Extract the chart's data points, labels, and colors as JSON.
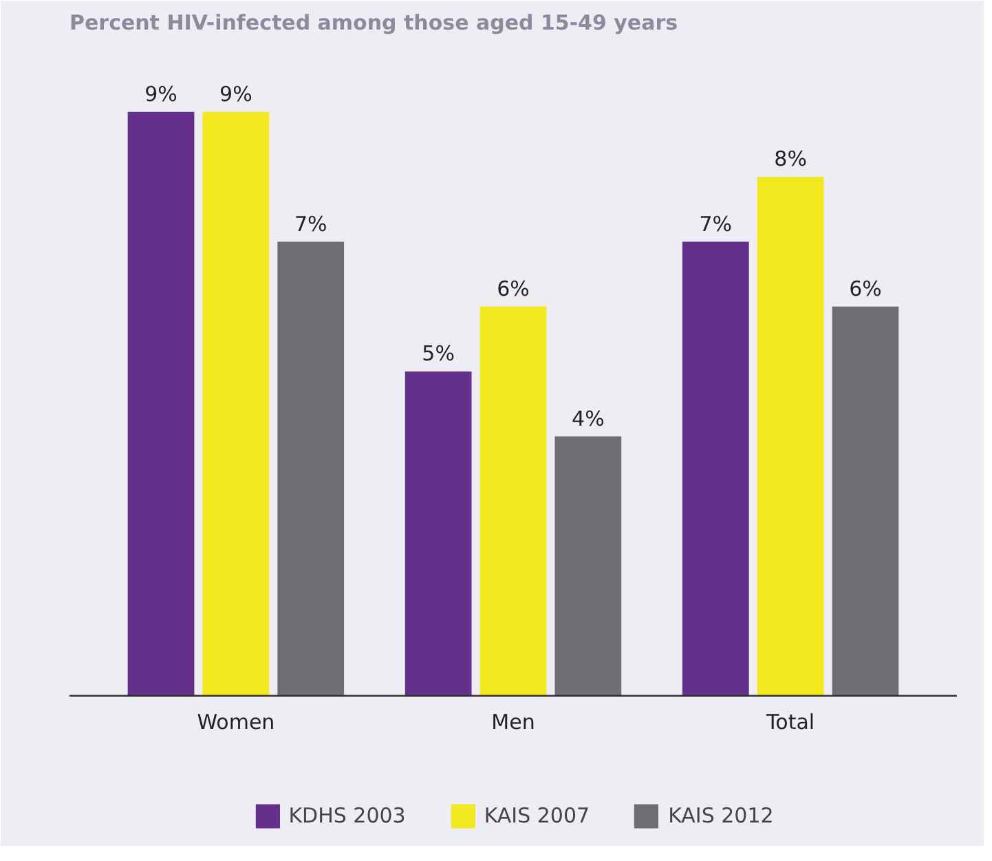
{
  "chart_data": {
    "type": "bar",
    "title": "Percent HIV-infected among those aged 15-49 years",
    "categories": [
      "Women",
      "Men",
      "Total"
    ],
    "series": [
      {
        "name": "KDHS 2003",
        "color": "#65308a",
        "values": [
          9,
          5,
          7
        ],
        "value_labels": [
          "9%",
          "5%",
          "7%"
        ]
      },
      {
        "name": "KAIS 2007",
        "color": "#f2e81e",
        "values": [
          9,
          6,
          8
        ],
        "value_labels": [
          "9%",
          "6%",
          "8%"
        ]
      },
      {
        "name": "KAIS 2012",
        "color": "#6d6e71",
        "values": [
          7,
          4,
          6
        ],
        "value_labels": [
          "7%",
          "4%",
          "6%"
        ]
      }
    ],
    "legend": "bottom",
    "grid": false
  }
}
